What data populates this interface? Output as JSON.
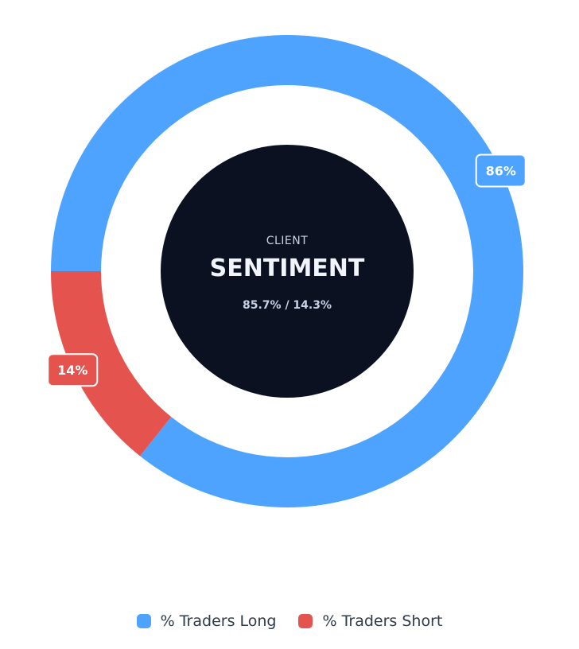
{
  "chart_data": {
    "type": "pie",
    "variant": "donut",
    "series": [
      {
        "name": "% Traders Long",
        "value": 85.7,
        "label": "86%",
        "color": "#4ea3ff"
      },
      {
        "name": "% Traders Short",
        "value": 14.3,
        "label": "14%",
        "color": "#e5534f"
      }
    ],
    "center": {
      "subtitle": "CLIENT",
      "title": "SENTIMENT",
      "values_text": "85.7% / 14.3%",
      "background": "#0b1120",
      "subtitle_color": "#c8d2e6",
      "title_color": "#f1f4fa",
      "values_color": "#c8d2e6"
    },
    "legend_position": "bottom"
  }
}
